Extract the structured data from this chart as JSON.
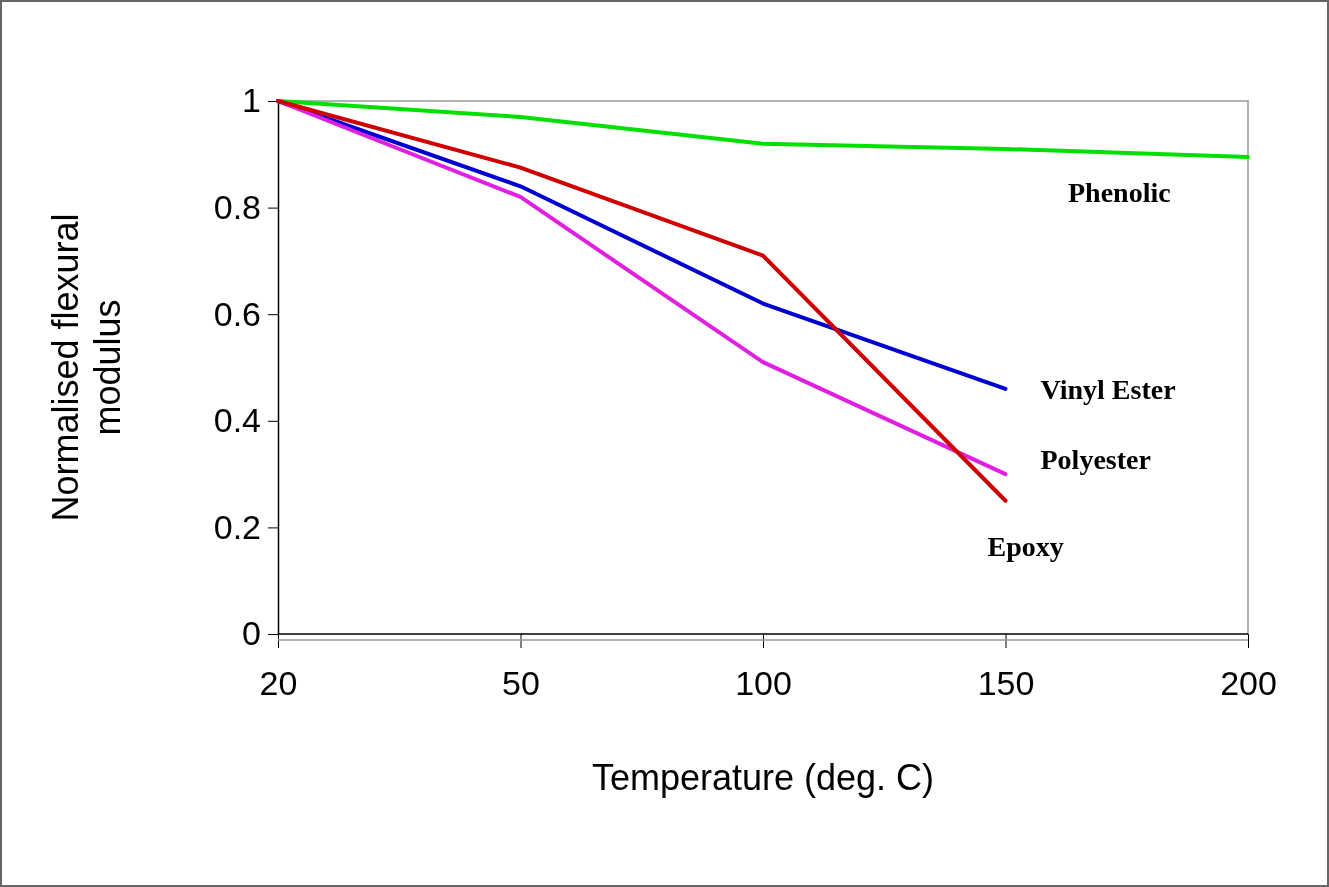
{
  "chart_data": {
    "type": "line",
    "xlabel": "Temperature (deg. C)",
    "ylabel": "Normalised flexural modulus",
    "categories": [
      "20",
      "50",
      "100",
      "150",
      "200"
    ],
    "ylim": [
      0,
      1
    ],
    "yticks": [
      0,
      0.2,
      0.4,
      0.6,
      0.8,
      1
    ],
    "legend": false,
    "grid": false,
    "marker": "none",
    "line_style": "solid",
    "series": [
      {
        "name": "Phenolic",
        "color": "#00e000",
        "values": [
          1,
          0.97,
          0.92,
          0.91,
          0.895
        ]
      },
      {
        "name": "Vinyl Ester",
        "color": "#0000d0",
        "values": [
          1,
          0.84,
          0.62,
          0.46,
          null
        ]
      },
      {
        "name": "Polyester",
        "color": "#e020e0",
        "values": [
          1,
          0.82,
          0.51,
          0.3,
          null
        ]
      },
      {
        "name": "Epoxy",
        "color": "#d00000",
        "values": [
          1,
          0.875,
          0.71,
          0.25,
          null
        ]
      }
    ]
  }
}
